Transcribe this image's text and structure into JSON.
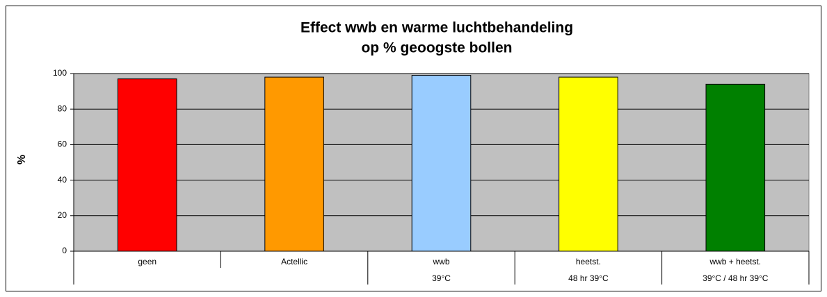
{
  "chart_data": {
    "type": "bar",
    "title": [
      "Effect wwb en warme luchtbehandeling",
      "op % geoogste bollen"
    ],
    "y_label": "%",
    "categories": [
      [
        "geen"
      ],
      [
        "Actellic"
      ],
      [
        "wwb",
        "39°C"
      ],
      [
        "heetst.",
        "48 hr 39°C"
      ],
      [
        "wwb + heetst.",
        "39°C / 48 hr 39°C"
      ]
    ],
    "values": [
      97,
      98,
      99,
      98,
      94
    ],
    "colors": [
      "#ff0000",
      "#ff9900",
      "#99ccff",
      "#ffff00",
      "#008000"
    ],
    "ylim": [
      0,
      100
    ],
    "yticks": [
      0,
      20,
      40,
      60,
      80,
      100
    ],
    "grid": true
  }
}
